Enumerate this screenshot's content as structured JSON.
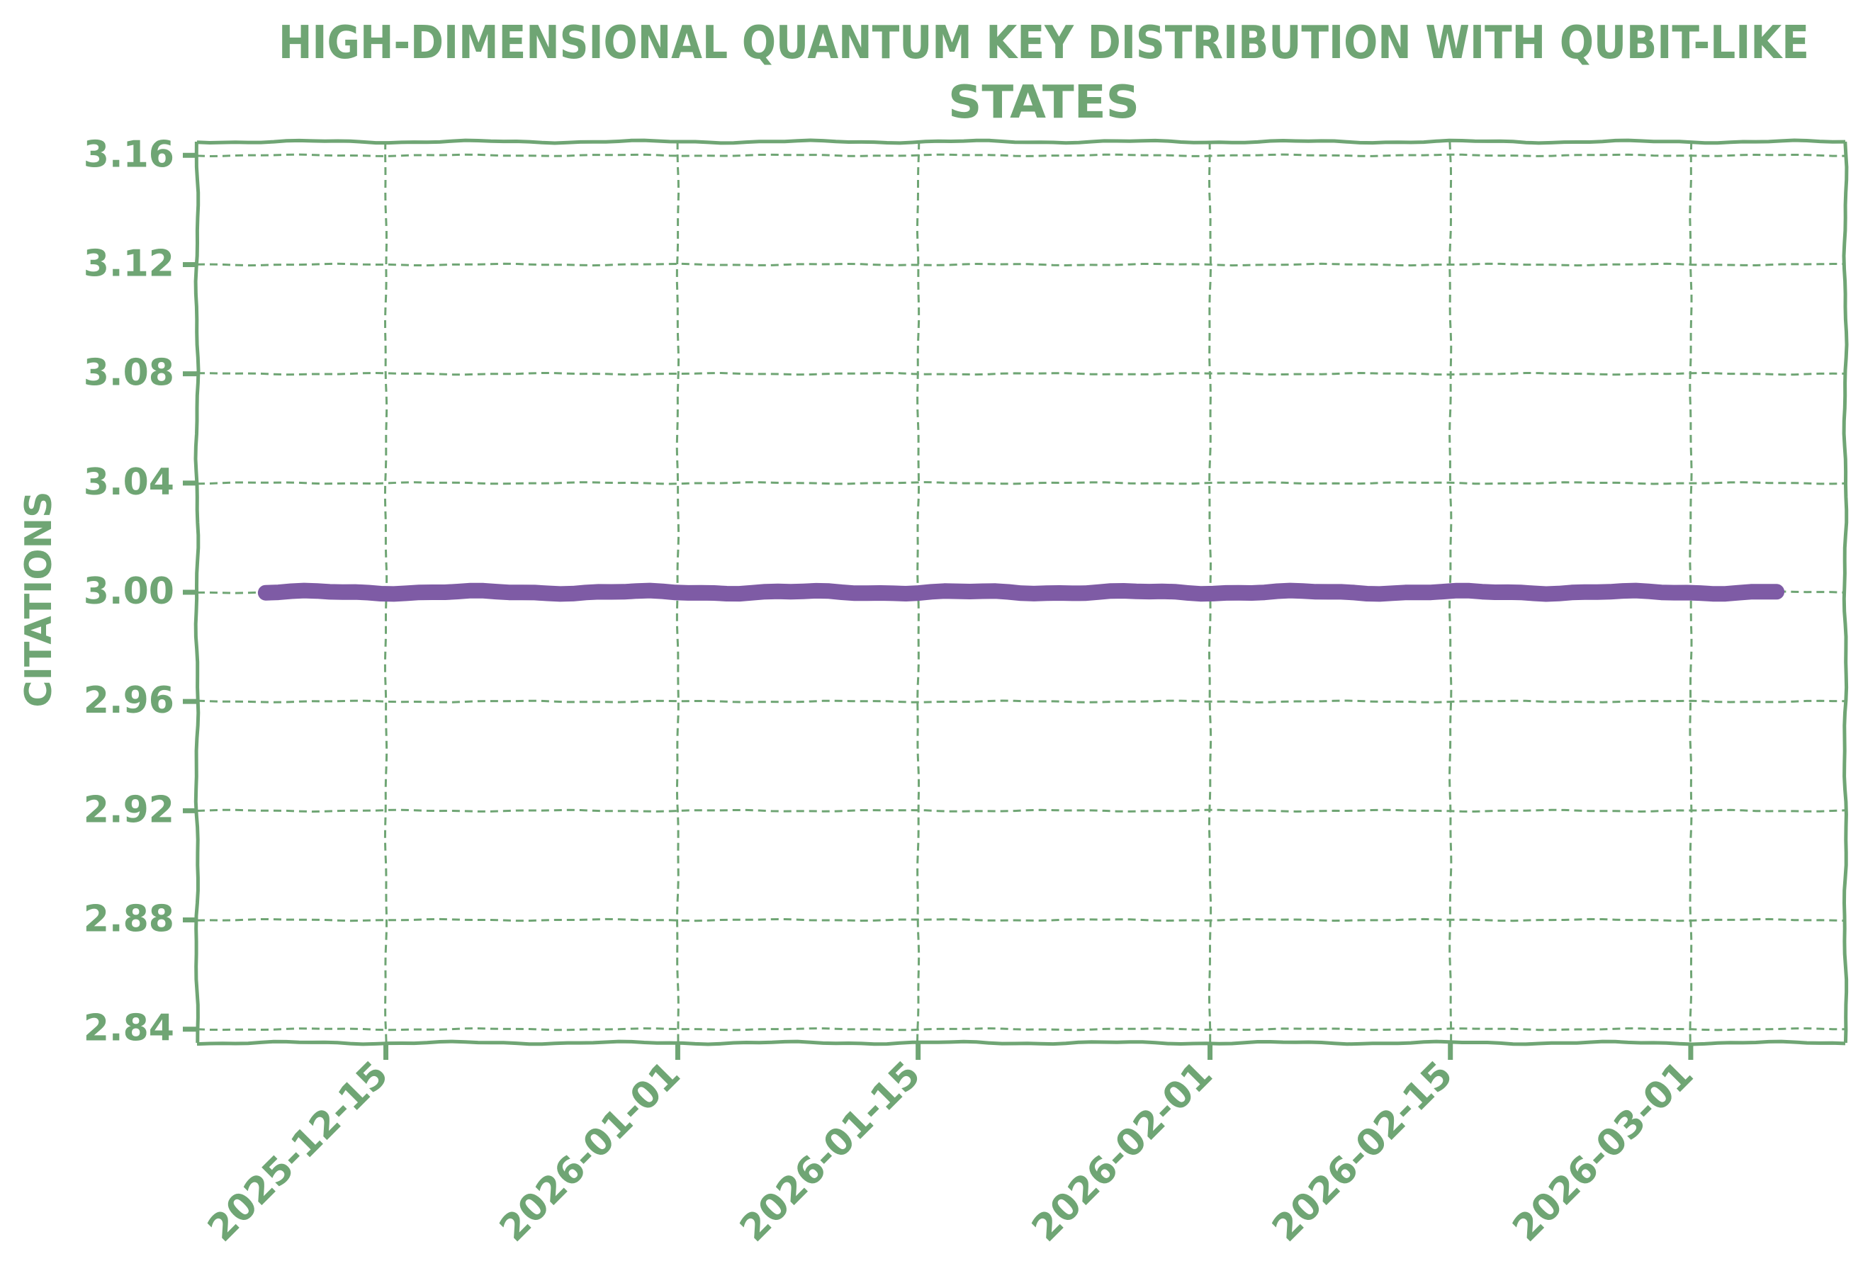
{
  "colors": {
    "ink": "#6fa574",
    "line": "#7e5ba5",
    "background": "#ffffff"
  },
  "chart_data": {
    "type": "line",
    "title": "HIGH-DIMENSIONAL QUANTUM KEY DISTRIBUTION WITH QUBIT-LIKE STATES",
    "title_lines": [
      "HIGH-DIMENSIONAL QUANTUM KEY DISTRIBUTION WITH QUBIT-LIKE",
      "STATES"
    ],
    "xlabel": "",
    "ylabel": "CITATIONS",
    "x_scale": "date",
    "xlim": [
      "2025-12-04",
      "2026-03-10"
    ],
    "ylim": [
      2.835,
      3.165
    ],
    "x_ticks": [
      "2025-12-15",
      "2026-01-01",
      "2026-01-15",
      "2026-02-01",
      "2026-02-15",
      "2026-03-01"
    ],
    "y_ticks": [
      2.84,
      2.88,
      2.92,
      2.96,
      3.0,
      3.04,
      3.08,
      3.12,
      3.16
    ],
    "y_tick_labels": [
      "2.84",
      "2.88",
      "2.92",
      "2.96",
      "3.00",
      "3.04",
      "3.08",
      "3.12",
      "3.16"
    ],
    "grid": true,
    "legend": "none",
    "style": "xkcd",
    "series": [
      {
        "x": [
          "2025-12-08",
          "2026-03-06"
        ],
        "y": [
          3.0,
          3.0
        ]
      }
    ]
  }
}
